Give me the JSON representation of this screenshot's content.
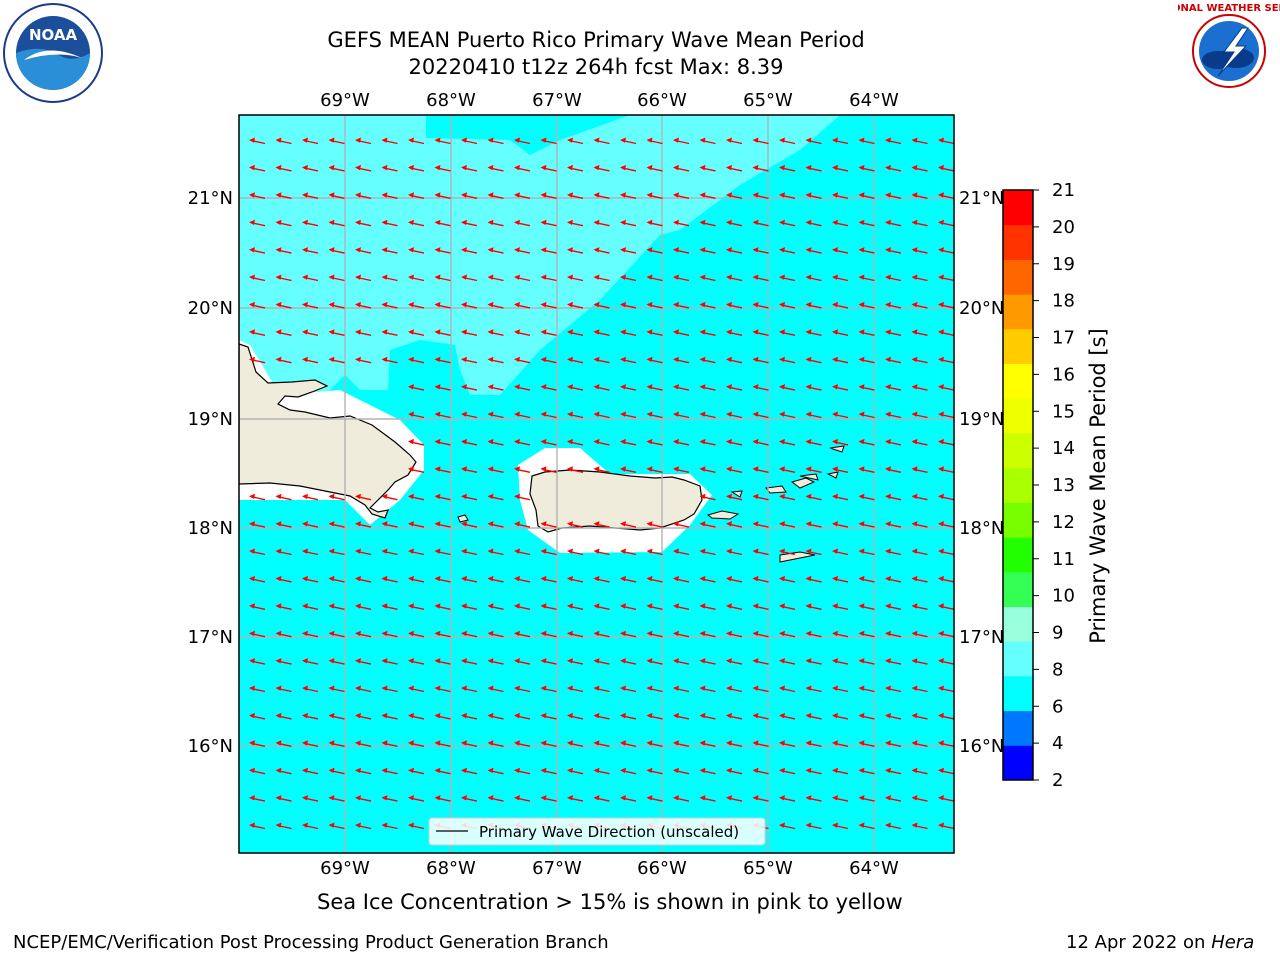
{
  "header": {
    "title_line1": "GEFS MEAN Puerto Rico Primary Wave Mean Period",
    "title_line2": "20220410 t12z 264h fcst   Max: 8.39"
  },
  "logos": {
    "left": {
      "name": "noaa-logo",
      "text": "NOAA",
      "ring_text": "NATIONAL OCEANIC AND ATMOSPHERIC ADMINISTRATION · U.S. DEPARTMENT OF COMMERCE"
    },
    "right": {
      "name": "nws-logo",
      "ring_text": "NATIONAL WEATHER SERVICE"
    }
  },
  "map": {
    "lon_labels": [
      "69°W",
      "68°W",
      "67°W",
      "66°W",
      "65°W",
      "64°W"
    ],
    "lat_labels": [
      "21°N",
      "20°N",
      "19°N",
      "18°N",
      "17°N",
      "16°N"
    ],
    "legend_label": "Primary Wave Direction (unscaled)",
    "vector_color": "#ff0000",
    "land_color": "#efecdc"
  },
  "colorbar": {
    "label": "Primary Wave Mean Period [s]",
    "ticks": [
      "2",
      "4",
      "6",
      "8",
      "9",
      "10",
      "11",
      "12",
      "13",
      "14",
      "15",
      "16",
      "17",
      "18",
      "19",
      "20",
      "21"
    ],
    "colors": [
      "#0000ff",
      "#0077ff",
      "#00ffff",
      "#66ffff",
      "#99ffdd",
      "#33ff55",
      "#22ff00",
      "#77ff00",
      "#aaff00",
      "#ccff00",
      "#eeff00",
      "#ffff00",
      "#ffcc00",
      "#ff9900",
      "#ff6600",
      "#ff3300",
      "#ff0000"
    ]
  },
  "notes": {
    "sea_ice": "Sea Ice Concentration > 15% is shown in pink to yellow"
  },
  "footer": {
    "left": "NCEP/EMC/Verification Post Processing Product Generation Branch",
    "date": "12 Apr 2022 on",
    "host": "Hera"
  }
}
